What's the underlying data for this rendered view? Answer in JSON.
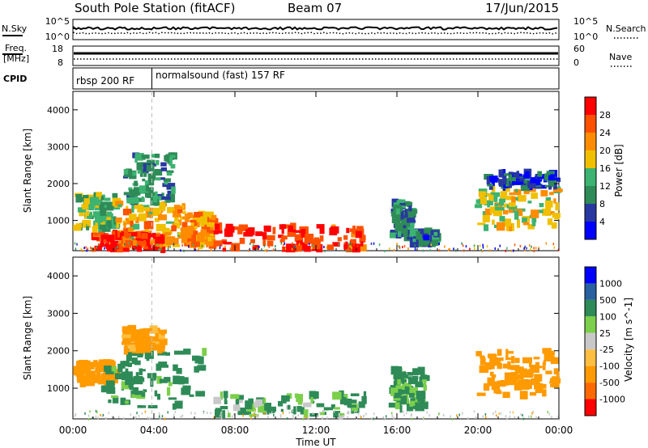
{
  "header": {
    "station": "South Pole Station (fitACF)",
    "beam": "Beam 07",
    "date": "17/Jun/2015"
  },
  "info_panel": {
    "nsky_label": "N.Sky",
    "nsky_top_tick": "10^5",
    "nsky_bottom_tick": "10^0",
    "nsearch_label": "N.Search",
    "nsearch_top_tick": "10^5",
    "nsearch_bottom_tick": "10^0",
    "freq_label": "Freq.",
    "freq_unit": "[MHz]",
    "freq_top_tick": "18",
    "freq_bottom_tick": "8",
    "nave_label": "Nave",
    "nave_top_tick": "60",
    "nave_bottom_tick": "0",
    "cpid_label": "CPID",
    "cpid_segments": [
      {
        "label": "rbsp 200 RF",
        "start_hour": 0,
        "end_hour": 3.9
      },
      {
        "label": "normalsound (fast) 157 RF",
        "start_hour": 3.9,
        "end_hour": 24
      }
    ]
  },
  "colors": {
    "power_scale": [
      "#0000ff",
      "#2838a0",
      "#2e8b57",
      "#3cb371",
      "#f0c000",
      "#ff8c00",
      "#ff5000",
      "#ff0000"
    ],
    "velocity_scale": [
      "#ff0000",
      "#ff6a00",
      "#ff9a00",
      "#ffbe40",
      "#c8c8c8",
      "#7ccf4a",
      "#2e8b57",
      "#2860a0",
      "#0000ff"
    ],
    "ground_scatter": "#c8c8c8"
  },
  "chart_data": [
    {
      "type": "heatmap",
      "title": "",
      "xlabel": "",
      "ylabel": "Slant Range [km]",
      "xlim": [
        0,
        24
      ],
      "ylim": [
        180,
        4500
      ],
      "y_ticks": [
        "1000",
        "2000",
        "3000",
        "4000"
      ],
      "x_ticks": [
        "00:00",
        "04:00",
        "08:00",
        "12:00",
        "16:00",
        "20:00",
        "00:00"
      ],
      "colorbar": {
        "label": "Power [dB]",
        "range": [
          0,
          30
        ],
        "ticks": [
          "4",
          "8",
          "12",
          "16",
          "20",
          "24",
          "28"
        ]
      },
      "scatter_regions": [
        {
          "t0": 0.2,
          "t1": 2.2,
          "r0": 700,
          "r1": 1700,
          "level": 14
        },
        {
          "t0": 2.2,
          "t1": 5.5,
          "r0": 300,
          "r1": 1500,
          "level": 20
        },
        {
          "t0": 2.6,
          "t1": 5.0,
          "r0": 1500,
          "r1": 2800,
          "level": 10
        },
        {
          "t0": 1.0,
          "t1": 4.5,
          "r0": 200,
          "r1": 650,
          "level": 28
        },
        {
          "t0": 5.5,
          "t1": 7.0,
          "r0": 300,
          "r1": 1200,
          "level": 22
        },
        {
          "t0": 7.0,
          "t1": 14.5,
          "r0": 200,
          "r1": 850,
          "level": 28
        },
        {
          "t0": 15.8,
          "t1": 16.8,
          "r0": 500,
          "r1": 1500,
          "level": 10
        },
        {
          "t0": 16.8,
          "t1": 18.0,
          "r0": 350,
          "r1": 700,
          "level": 8
        },
        {
          "t0": 20.0,
          "t1": 24.0,
          "r0": 800,
          "r1": 1900,
          "level": 18
        },
        {
          "t0": 20.5,
          "t1": 24.0,
          "r0": 1900,
          "r1": 2300,
          "level": 6
        }
      ]
    },
    {
      "type": "heatmap",
      "title": "",
      "xlabel": "Time UT",
      "ylabel": "Slant Range [km]",
      "xlim": [
        0,
        24
      ],
      "ylim": [
        180,
        4500
      ],
      "y_ticks": [
        "1000",
        "2000",
        "3000",
        "4000"
      ],
      "x_ticks": [
        "00:00",
        "04:00",
        "08:00",
        "12:00",
        "16:00",
        "20:00",
        "00:00"
      ],
      "colorbar": {
        "label": "Velocity [m s^-1]",
        "ticks": [
          "1000",
          "500",
          "100",
          "25",
          "-25",
          "-100",
          "-500",
          "-1000"
        ]
      },
      "scatter_regions": [
        {
          "t0": 0.2,
          "t1": 2.2,
          "r0": 1100,
          "r1": 1700,
          "velocity": -300
        },
        {
          "t0": 1.5,
          "t1": 6.5,
          "r0": 500,
          "r1": 2000,
          "velocity": 200
        },
        {
          "t0": 2.6,
          "t1": 4.5,
          "r0": 2000,
          "r1": 2600,
          "velocity": -200
        },
        {
          "t0": 7.0,
          "t1": 14.5,
          "r0": 250,
          "r1": 850,
          "velocity": 120
        },
        {
          "t0": 15.8,
          "t1": 17.5,
          "r0": 450,
          "r1": 1500,
          "velocity": 150
        },
        {
          "t0": 20.0,
          "t1": 24.0,
          "r0": 800,
          "r1": 2000,
          "velocity": -300
        }
      ]
    }
  ]
}
